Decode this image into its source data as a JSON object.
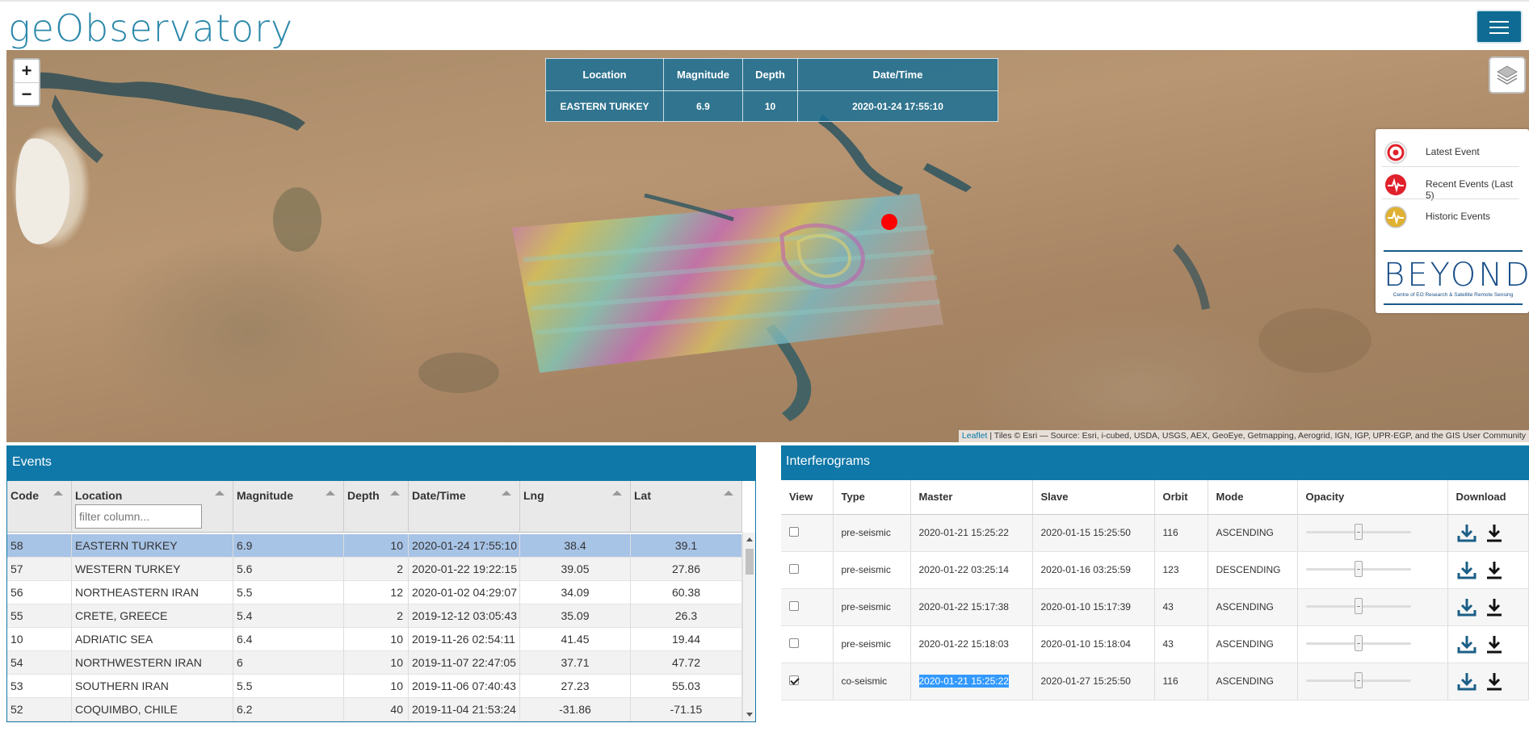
{
  "app": {
    "logo_text": "geObservatory",
    "menu_icon": "hamburger-icon"
  },
  "map": {
    "zoom_in_label": "+",
    "zoom_out_label": "−",
    "layers_icon": "layers-icon",
    "event_table": {
      "headers": [
        "Location",
        "Magnitude",
        "Depth",
        "Date/Time"
      ],
      "row": {
        "location": "EASTERN TURKEY",
        "magnitude": "6.9",
        "depth": "10",
        "datetime": "2020-01-24 17:55:10"
      }
    },
    "legend": {
      "items": [
        {
          "label": "Latest Event",
          "icon": "latest-event-icon",
          "color": "#e0202a"
        },
        {
          "label": "Recent Events (Last 5)",
          "icon": "recent-events-icon",
          "color": "#e0202a"
        },
        {
          "label": "Historic Events",
          "icon": "historic-events-icon",
          "color": "#e0b030"
        }
      ],
      "logo_word": "BEYOND",
      "logo_sub": "Centre of EO Research & Satellite Remote Sensing"
    },
    "attribution": {
      "link": "Leaflet",
      "text": " | Tiles © Esri — Source: Esri, i-cubed, USDA, USGS, AEX, GeoEye, Getmapping, Aerogrid, IGN, IGP, UPR-EGP, and the GIS User Community"
    },
    "marker_color": "#ff0000"
  },
  "events": {
    "title": "Events",
    "filter_placeholder": "filter column...",
    "columns": [
      "Code",
      "Location",
      "Magnitude",
      "Depth",
      "Date/Time",
      "Lng",
      "Lat"
    ],
    "rows": [
      {
        "code": "58",
        "location": "EASTERN TURKEY",
        "magnitude": "6.9",
        "depth": "10",
        "datetime": "2020-01-24 17:55:10",
        "lng": "38.4",
        "lat": "39.1",
        "selected": true
      },
      {
        "code": "57",
        "location": "WESTERN TURKEY",
        "magnitude": "5.6",
        "depth": "2",
        "datetime": "2020-01-22 19:22:15",
        "lng": "39.05",
        "lat": "27.86"
      },
      {
        "code": "56",
        "location": "NORTHEASTERN IRAN",
        "magnitude": "5.5",
        "depth": "12",
        "datetime": "2020-01-02 04:29:07",
        "lng": "34.09",
        "lat": "60.38"
      },
      {
        "code": "55",
        "location": "CRETE, GREECE",
        "magnitude": "5.4",
        "depth": "2",
        "datetime": "2019-12-12 03:05:43",
        "lng": "35.09",
        "lat": "26.3"
      },
      {
        "code": "10",
        "location": "ADRIATIC SEA",
        "magnitude": "6.4",
        "depth": "10",
        "datetime": "2019-11-26 02:54:11",
        "lng": "41.45",
        "lat": "19.44"
      },
      {
        "code": "54",
        "location": "NORTHWESTERN IRAN",
        "magnitude": "6",
        "depth": "10",
        "datetime": "2019-11-07 22:47:05",
        "lng": "37.71",
        "lat": "47.72"
      },
      {
        "code": "53",
        "location": "SOUTHERN IRAN",
        "magnitude": "5.5",
        "depth": "10",
        "datetime": "2019-11-06 07:40:43",
        "lng": "27.23",
        "lat": "55.03"
      },
      {
        "code": "52",
        "location": "COQUIMBO, CHILE",
        "magnitude": "6.2",
        "depth": "40",
        "datetime": "2019-11-04 21:53:24",
        "lng": "-31.86",
        "lat": "-71.15"
      }
    ]
  },
  "interferograms": {
    "title": "Interferograms",
    "columns": [
      "View",
      "Type",
      "Master",
      "Slave",
      "Orbit",
      "Mode",
      "Opacity",
      "Download"
    ],
    "rows": [
      {
        "checked": false,
        "type": "pre-seismic",
        "master": "2020-01-21 15:25:22",
        "slave": "2020-01-15 15:25:50",
        "orbit": "116",
        "mode": "ASCENDING",
        "opacity": 0.5
      },
      {
        "checked": false,
        "type": "pre-seismic",
        "master": "2020-01-22 03:25:14",
        "slave": "2020-01-16 03:25:59",
        "orbit": "123",
        "mode": "DESCENDING",
        "opacity": 0.5
      },
      {
        "checked": false,
        "type": "pre-seismic",
        "master": "2020-01-22 15:17:38",
        "slave": "2020-01-10 15:17:39",
        "orbit": "43",
        "mode": "ASCENDING",
        "opacity": 0.5
      },
      {
        "checked": false,
        "type": "pre-seismic",
        "master": "2020-01-22 15:18:03",
        "slave": "2020-01-10 15:18:04",
        "orbit": "43",
        "mode": "ASCENDING",
        "opacity": 0.5
      },
      {
        "checked": true,
        "type": "co-seismic",
        "master": "2020-01-21 15:25:22",
        "slave": "2020-01-27 15:25:50",
        "orbit": "116",
        "mode": "ASCENDING",
        "opacity": 0.5,
        "master_highlighted": true
      }
    ],
    "download_icons": [
      "download-tray-icon",
      "download-icon"
    ]
  }
}
